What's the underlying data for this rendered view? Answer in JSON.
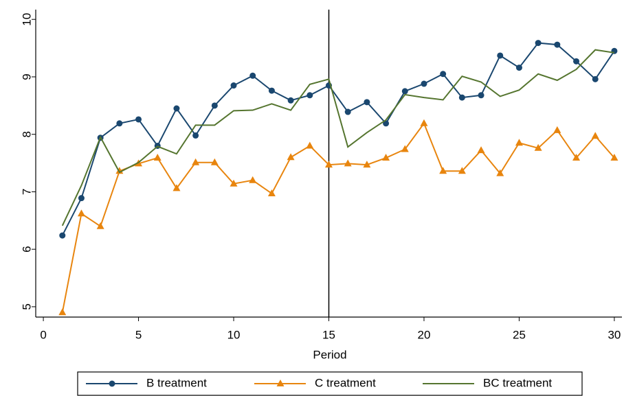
{
  "chart_data": {
    "type": "line",
    "x_label": "Period",
    "x": [
      1,
      2,
      3,
      4,
      5,
      6,
      7,
      8,
      9,
      10,
      11,
      12,
      13,
      14,
      15,
      16,
      17,
      18,
      19,
      20,
      21,
      22,
      23,
      24,
      25,
      26,
      27,
      28,
      29,
      30
    ],
    "series": [
      {
        "name": "B treatment",
        "color": "#1a476f",
        "marker": "circle",
        "values": [
          6.24,
          6.89,
          7.94,
          8.19,
          8.26,
          7.8,
          8.45,
          7.98,
          8.5,
          8.85,
          9.02,
          8.76,
          8.59,
          8.68,
          8.85,
          8.39,
          8.56,
          8.19,
          8.75,
          8.88,
          9.05,
          8.64,
          8.68,
          9.37,
          9.16,
          9.59,
          9.56,
          9.27,
          8.96,
          9.45
        ]
      },
      {
        "name": "C treatment",
        "color": "#e8850e",
        "marker": "triangle",
        "values": [
          4.9,
          6.62,
          6.4,
          7.36,
          7.49,
          7.59,
          7.06,
          7.51,
          7.51,
          7.14,
          7.2,
          6.97,
          7.6,
          7.8,
          7.47,
          7.49,
          7.47,
          7.59,
          7.74,
          8.19,
          7.36,
          7.36,
          7.72,
          7.32,
          7.85,
          7.76,
          8.07,
          7.59,
          7.97,
          7.59
        ]
      },
      {
        "name": "BC treatment",
        "color": "#55752f",
        "marker": "none",
        "values": [
          6.41,
          7.11,
          7.95,
          7.34,
          7.51,
          7.79,
          7.66,
          8.16,
          8.16,
          8.41,
          8.42,
          8.53,
          8.42,
          8.87,
          8.96,
          7.78,
          8.03,
          8.25,
          8.69,
          8.64,
          8.6,
          9.01,
          8.91,
          8.66,
          8.77,
          9.05,
          8.94,
          9.13,
          9.47,
          9.42
        ]
      }
    ],
    "xlim": [
      -0.4,
      30.4
    ],
    "ylim": [
      4.82,
      10.17
    ],
    "xticks": [
      0,
      5,
      10,
      15,
      20,
      25,
      30
    ],
    "yticks": [
      5,
      6,
      7,
      8,
      9,
      10
    ],
    "xline": 15,
    "grid": false,
    "legend": "bottom"
  }
}
